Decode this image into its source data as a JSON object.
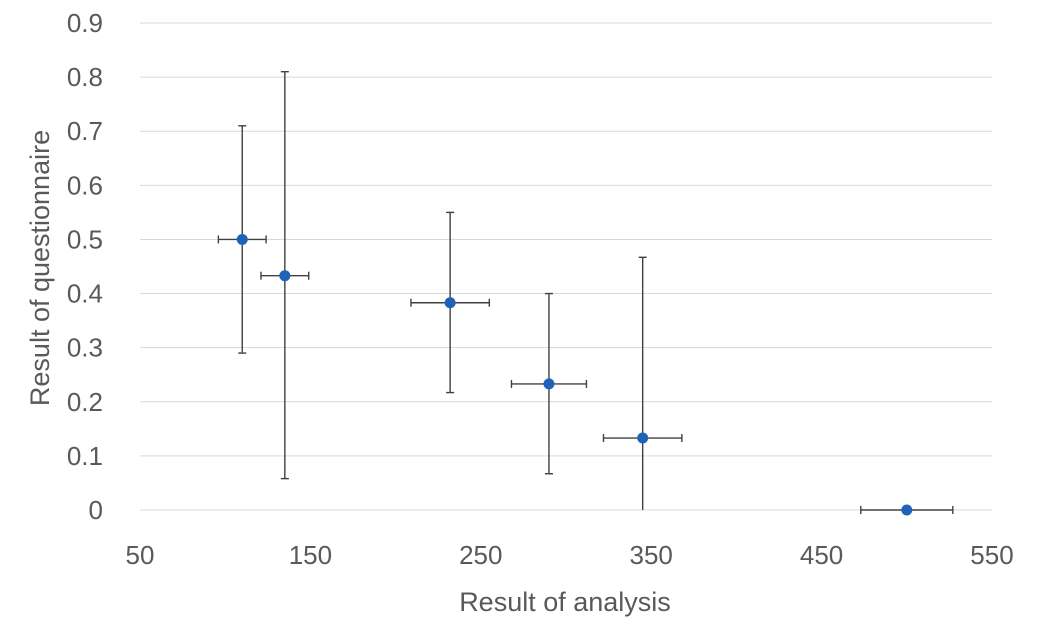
{
  "chart_data": {
    "type": "scatter",
    "xlabel": "Result of analysis",
    "ylabel": "Result of questionnaire",
    "xlim": [
      50,
      550
    ],
    "ylim": [
      0,
      0.9
    ],
    "x_ticks": [
      "50",
      "150",
      "250",
      "350",
      "450",
      "550"
    ],
    "y_ticks": [
      "0",
      "0.1",
      "0.2",
      "0.3",
      "0.4",
      "0.5",
      "0.6",
      "0.7",
      "0.8",
      "0.9"
    ],
    "grid": "horizontal",
    "legend": "none",
    "marker_color": "#1f63b8",
    "error_bar_color": "#404040",
    "points": [
      {
        "x": 110,
        "y": 0.5,
        "x_err": 14,
        "y_low": 0.29,
        "y_high": 0.71
      },
      {
        "x": 135,
        "y": 0.433,
        "x_err": 14,
        "y_low": 0.058,
        "y_high": 0.81
      },
      {
        "x": 232,
        "y": 0.383,
        "x_err": 23,
        "y_low": 0.217,
        "y_high": 0.55
      },
      {
        "x": 290,
        "y": 0.233,
        "x_err": 22,
        "y_low": 0.067,
        "y_high": 0.4
      },
      {
        "x": 345,
        "y": 0.133,
        "x_err": 23,
        "y_low": 0.0,
        "y_high": 0.467
      },
      {
        "x": 500,
        "y": 0.0,
        "x_err": 27,
        "y_low": 0.0,
        "y_high": 0.0
      }
    ]
  }
}
